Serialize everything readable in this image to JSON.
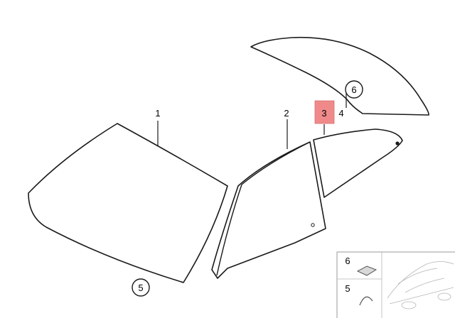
{
  "labels": {
    "part_1": "1",
    "part_2": "2",
    "part_3": "3",
    "part_4": "4",
    "callout_6": "6",
    "callout_5": "5",
    "legend_6": "6",
    "legend_5": "5"
  },
  "highlight": {
    "part": "3",
    "color": "#f08a8a"
  }
}
